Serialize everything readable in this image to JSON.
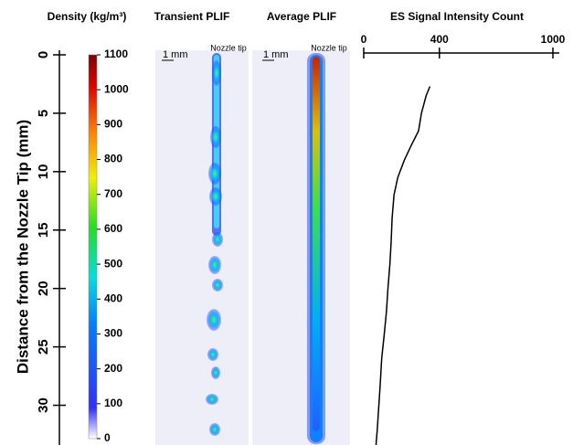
{
  "chart_data": {
    "type": "line",
    "title": "ES Signal Intensity Count",
    "y_label": "Distance from the Nozzle Tip (mm)",
    "ylim": [
      0,
      33.4
    ],
    "yticks": [
      0,
      5,
      10,
      15,
      20,
      25,
      30
    ],
    "xlim": [
      0,
      1000
    ],
    "xticks": [
      0,
      400,
      1000
    ],
    "x": [
      2.7,
      3.5,
      5,
      6.5,
      7.8,
      9,
      10.5,
      12,
      14,
      16,
      18,
      20,
      22,
      24,
      26,
      28,
      30,
      32,
      33.4
    ],
    "values": [
      350,
      330,
      305,
      290,
      250,
      215,
      180,
      160,
      150,
      145,
      138,
      128,
      120,
      108,
      95,
      88,
      80,
      72,
      65
    ],
    "color": "#000000",
    "colorbar": {
      "label": "Density (kg/m³)",
      "lim": [
        0,
        1100
      ],
      "ticks": [
        0,
        100,
        200,
        300,
        400,
        500,
        600,
        700,
        800,
        900,
        1000,
        1100
      ]
    },
    "panels": [
      "Transient PLIF",
      "Average PLIF"
    ],
    "scale_label": "1 mm",
    "nozzle_label": "Nozzle tip"
  }
}
